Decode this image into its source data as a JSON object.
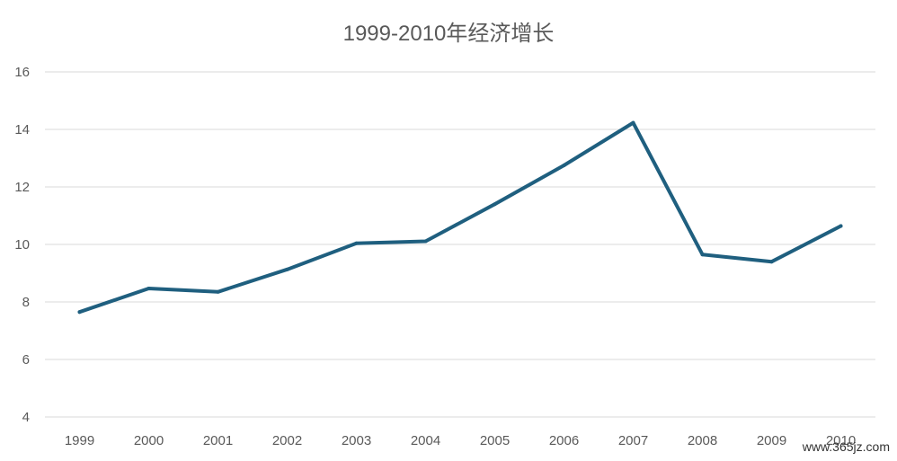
{
  "chart_data": {
    "type": "line",
    "title": "1999-2010年经济增长",
    "categories": [
      "1999",
      "2000",
      "2001",
      "2002",
      "2003",
      "2004",
      "2005",
      "2006",
      "2007",
      "2008",
      "2009",
      "2010"
    ],
    "series": [
      {
        "values": [
          7.65,
          8.47,
          8.35,
          9.13,
          10.04,
          10.11,
          11.4,
          12.75,
          14.23,
          9.65,
          9.4,
          10.64
        ]
      }
    ],
    "ylim": [
      4,
      16
    ],
    "yticks": [
      4,
      6,
      8,
      10,
      12,
      14,
      16
    ],
    "grid": true,
    "xlabel": "",
    "ylabel": ""
  },
  "colors": {
    "line": "#1f5f7f",
    "grid": "#d9d9d9",
    "text": "#595959"
  },
  "watermark": "www.365jz.com"
}
